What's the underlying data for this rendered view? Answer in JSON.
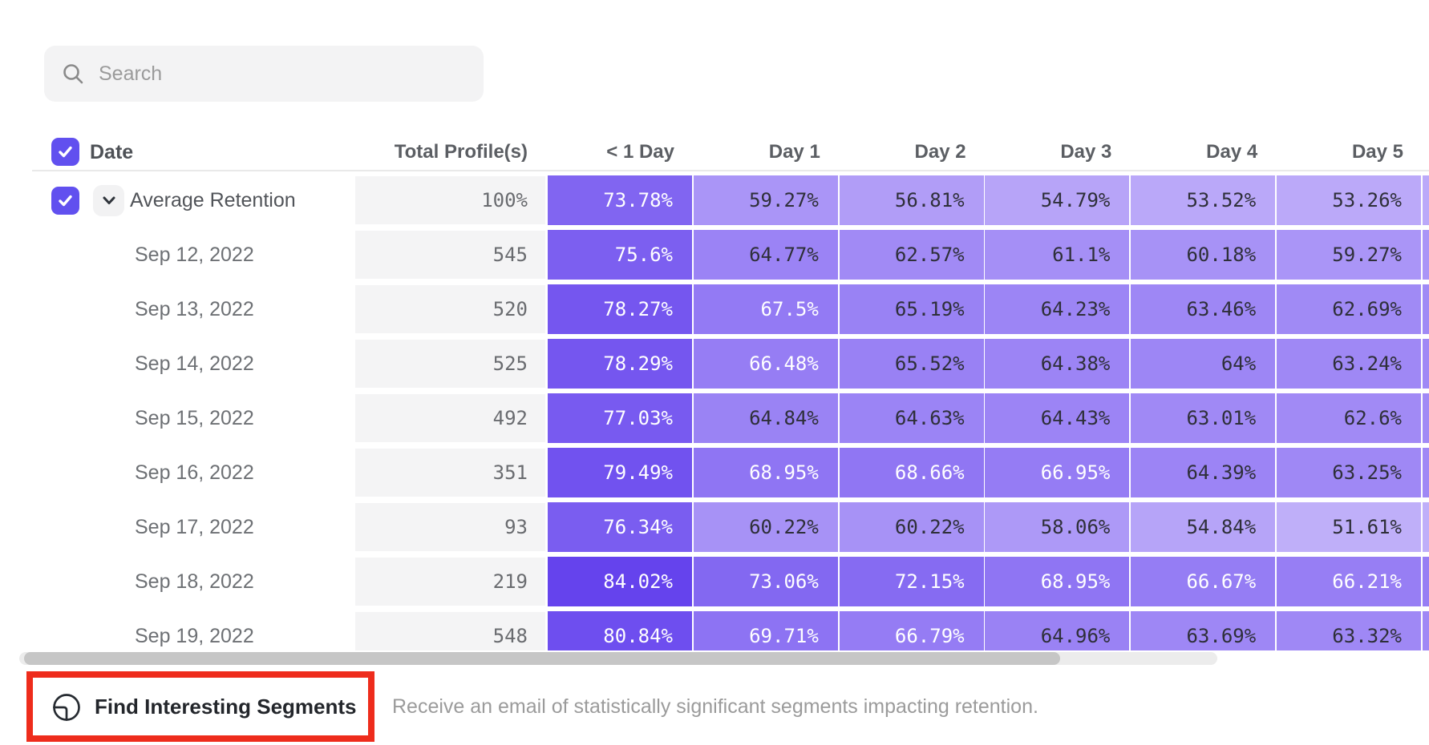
{
  "search": {
    "placeholder": "Search"
  },
  "table": {
    "date_header": "Date",
    "total_column_header": "Total Profile(s)",
    "day_column_headers": [
      "< 1 Day",
      "Day 1",
      "Day 2",
      "Day 3",
      "Day 4",
      "Day 5"
    ],
    "rows": [
      {
        "label": "Average Retention",
        "total": "100%",
        "checked": true,
        "expandable": true,
        "values": [
          73.78,
          59.27,
          56.81,
          54.79,
          53.52,
          53.26
        ]
      },
      {
        "label": "Sep 12, 2022",
        "total": "545",
        "values": [
          75.6,
          64.77,
          62.57,
          61.1,
          60.18,
          59.27
        ]
      },
      {
        "label": "Sep 13, 2022",
        "total": "520",
        "values": [
          78.27,
          67.5,
          65.19,
          64.23,
          63.46,
          62.69
        ]
      },
      {
        "label": "Sep 14, 2022",
        "total": "525",
        "values": [
          78.29,
          66.48,
          65.52,
          64.38,
          64,
          63.24
        ]
      },
      {
        "label": "Sep 15, 2022",
        "total": "492",
        "values": [
          77.03,
          64.84,
          64.63,
          64.43,
          63.01,
          62.6
        ]
      },
      {
        "label": "Sep 16, 2022",
        "total": "351",
        "values": [
          79.49,
          68.95,
          68.66,
          66.95,
          64.39,
          63.25
        ]
      },
      {
        "label": "Sep 17, 2022",
        "total": "93",
        "values": [
          76.34,
          60.22,
          60.22,
          58.06,
          54.84,
          51.61
        ]
      },
      {
        "label": "Sep 18, 2022",
        "total": "219",
        "values": [
          84.02,
          73.06,
          72.15,
          68.95,
          66.67,
          66.21
        ]
      },
      {
        "label": "Sep 19, 2022",
        "total": "548",
        "values": [
          80.84,
          69.71,
          66.79,
          64.96,
          63.69,
          63.32
        ]
      }
    ]
  },
  "heatmap": {
    "light_color": "#c4b4fa",
    "dark_color": "#6240ed",
    "scale_min": 50,
    "scale_max": 85,
    "white_text_threshold": 66,
    "dark_text_color": "#2e2f39",
    "white_text_color": "#ffffff"
  },
  "colors": {
    "accent_purple": "#6150ef",
    "annotation_red": "#ee2c1c",
    "total_cell_bg": "#f4f4f5"
  },
  "footer": {
    "button_label": "Find Interesting Segments",
    "description": "Receive an email of statistically significant segments impacting retention."
  },
  "icons": {
    "search": "search-icon",
    "checkbox_check": "check-icon",
    "expand": "chevron-down-icon",
    "segments": "segment-pie-icon"
  }
}
